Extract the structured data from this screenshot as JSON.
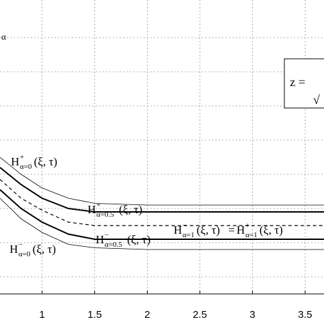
{
  "chart_data": {
    "type": "line",
    "xlim": [
      0.6,
      3.68
    ],
    "xticks": [
      1,
      1.5,
      2,
      2.5,
      3,
      3.5
    ],
    "ylim": [
      0,
      8.6
    ],
    "yticks": [
      0.5,
      1.5,
      2.5,
      3.5,
      4.5,
      5.5,
      6.5,
      7.5
    ],
    "grid": true,
    "y_label_fragment": "α",
    "box_text": [
      "z =",
      "√"
    ],
    "x": [
      0.6,
      0.8,
      1.0,
      1.25,
      1.5,
      2.0,
      3.68
    ],
    "series": [
      {
        "color": "#000000",
        "width": 0.8,
        "dash": false,
        "values": [
          4.0,
          3.5,
          3.1,
          2.8,
          2.65,
          2.6,
          2.6
        ]
      },
      {
        "color": "#000000",
        "width": 2,
        "dash": false,
        "values": [
          3.7,
          3.2,
          2.8,
          2.5,
          2.4,
          2.4,
          2.4
        ]
      },
      {
        "color": "#000000",
        "width": 1.2,
        "dash": true,
        "values": [
          3.35,
          2.8,
          2.45,
          2.1,
          2.0,
          2.0,
          2.0
        ]
      },
      {
        "color": "#000000",
        "width": 2,
        "dash": false,
        "values": [
          3.05,
          2.5,
          2.1,
          1.75,
          1.6,
          1.6,
          1.6
        ]
      },
      {
        "color": "#000000",
        "width": 0.8,
        "dash": false,
        "values": [
          2.8,
          2.2,
          1.8,
          1.45,
          1.35,
          1.3,
          1.3
        ]
      }
    ],
    "annotations": [
      {
        "base": "H",
        "sup": "+",
        "sub": "α=0",
        "arg": "(ξ, τ)"
      },
      {
        "base": "H",
        "sup": "+",
        "sub": "α=0.5",
        "arg": "(ξ, τ)"
      },
      {
        "base": "H",
        "sup": "−",
        "sub": "α=0.5",
        "arg": "(ξ, τ)"
      },
      {
        "base": "H",
        "sup": "−",
        "sub": "α=0",
        "arg": "(ξ, τ)"
      },
      {
        "base": "H",
        "sup": "−",
        "sub": "α=1",
        "arg": "(ξ, τ)"
      },
      {
        "base": "H",
        "sup": "+",
        "sub": "α=1",
        "arg": "(ξ, τ)"
      }
    ],
    "equals": "="
  }
}
